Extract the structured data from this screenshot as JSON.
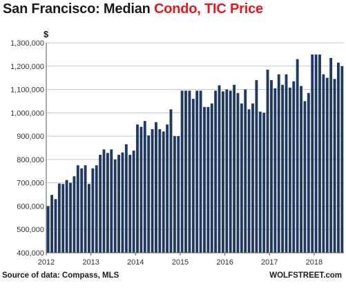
{
  "title_part1": "San Francisco: Median ",
  "title_part2": "Condo, TIC Price",
  "source": "Source of data: Compass, MLS",
  "brand": "WOLFSTREET.com",
  "chart_data": {
    "type": "bar",
    "title": "San Francisco: Median Condo, TIC Price",
    "ylabel": "$",
    "xlabel": "",
    "ylim": [
      400000,
      1300000
    ],
    "yticks": [
      "400,000",
      "500,000",
      "600,000",
      "700,000",
      "800,000",
      "900,000",
      "1,000,000",
      "1,100,000",
      "1,200,000",
      "1,300,000"
    ],
    "xticks": [
      "2012",
      "2013",
      "2014",
      "2015",
      "2016",
      "2017",
      "2018"
    ],
    "grid": true,
    "bar_color": "#1f3864",
    "grid_color": "#c7c7c7",
    "start": "2012-01",
    "values": [
      600000,
      648000,
      630000,
      697000,
      695000,
      712000,
      700000,
      728000,
      775000,
      762000,
      775000,
      695000,
      762000,
      775000,
      820000,
      843000,
      828000,
      843000,
      800000,
      820000,
      830000,
      865000,
      820000,
      838000,
      950000,
      940000,
      965000,
      903000,
      930000,
      960000,
      930000,
      920000,
      950000,
      1015000,
      900000,
      900000,
      1095000,
      1095000,
      1095000,
      1060000,
      1095000,
      1095000,
      1025000,
      1025000,
      1040000,
      1095000,
      1118000,
      1092000,
      1100000,
      1095000,
      1120000,
      1085000,
      1040000,
      1100000,
      1015000,
      1040000,
      1140000,
      1005000,
      1000000,
      1185000,
      1140000,
      1105000,
      1165000,
      1120000,
      1165000,
      1108000,
      1135000,
      1230000,
      1115000,
      1050000,
      1085000,
      1250000,
      1250000,
      1250000,
      1165000,
      1150000,
      1235000,
      1145000,
      1215000,
      1200000
    ]
  }
}
